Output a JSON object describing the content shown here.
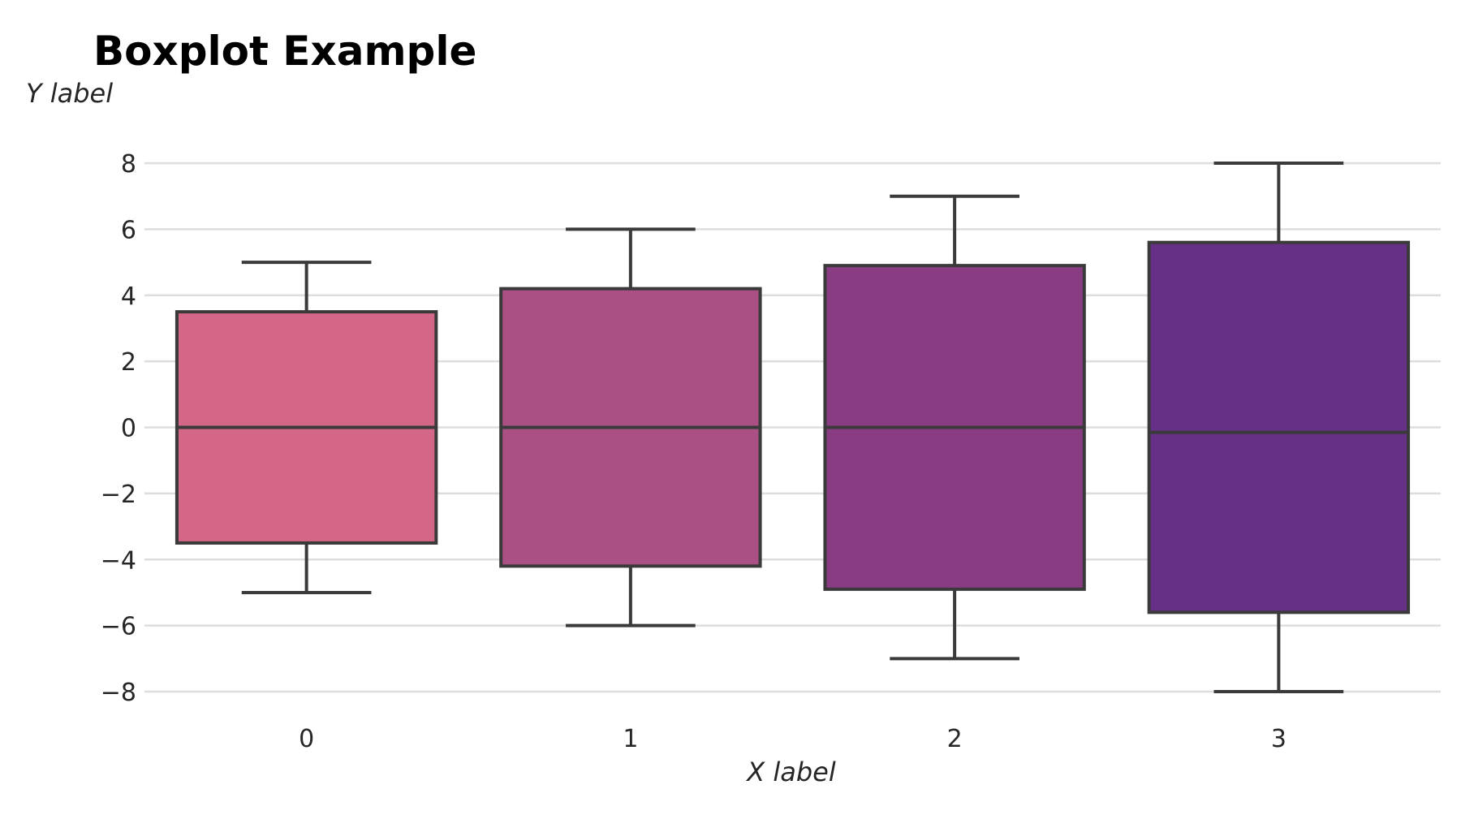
{
  "chart_data": {
    "type": "boxplot",
    "title": "Boxplot Example",
    "xlabel": "X label",
    "ylabel": "Y label",
    "categories": [
      "0",
      "1",
      "2",
      "3"
    ],
    "ylim": [
      -8.5,
      9
    ],
    "yticks": [
      8,
      6,
      4,
      2,
      0,
      -2,
      -4,
      -6,
      -8
    ],
    "ytick_labels": [
      "8",
      "6",
      "4",
      "2",
      "0",
      "−2",
      "−4",
      "−6",
      "−8"
    ],
    "grid": "horizontal",
    "boxes": [
      {
        "category": "0",
        "whisker_low": -5,
        "q1": -3.5,
        "median": 0,
        "q3": 3.5,
        "whisker_high": 5,
        "color": "#d46788"
      },
      {
        "category": "1",
        "whisker_low": -6,
        "q1": -4.2,
        "median": 0,
        "q3": 4.2,
        "whisker_high": 6,
        "color": "#aa5085"
      },
      {
        "category": "2",
        "whisker_low": -7,
        "q1": -4.9,
        "median": 0,
        "q3": 4.9,
        "whisker_high": 7,
        "color": "#893c82"
      },
      {
        "category": "3",
        "whisker_low": -8,
        "q1": -5.6,
        "median": -0.15,
        "q3": 5.6,
        "whisker_high": 8,
        "color": "#663087"
      }
    ]
  }
}
